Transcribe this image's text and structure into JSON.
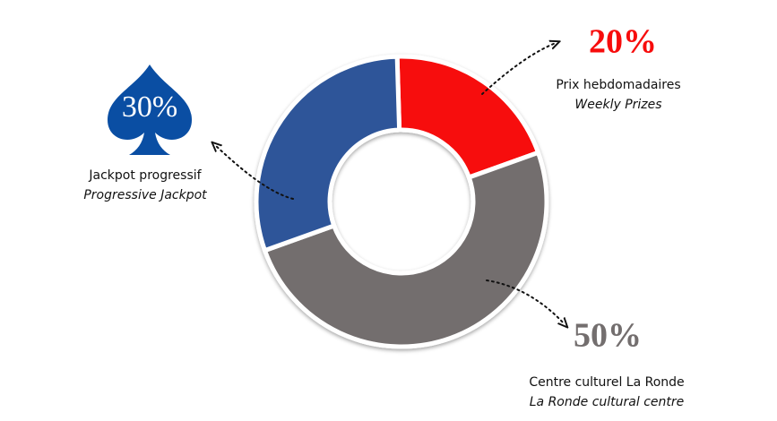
{
  "chart_data": {
    "type": "pie",
    "categories": [
      "Prix hebdomadaires",
      "Centre culturel La Ronde",
      "Jackpot progressif"
    ],
    "categories_en": [
      "Weekly Prizes",
      "La Ronde cultural centre",
      "Progressive Jackpot"
    ],
    "values": [
      20,
      50,
      30
    ],
    "value_labels": [
      "20%",
      "50%",
      "30%"
    ],
    "colors": [
      "#f70c0c",
      "#736e6e",
      "#2d5599"
    ]
  }
}
